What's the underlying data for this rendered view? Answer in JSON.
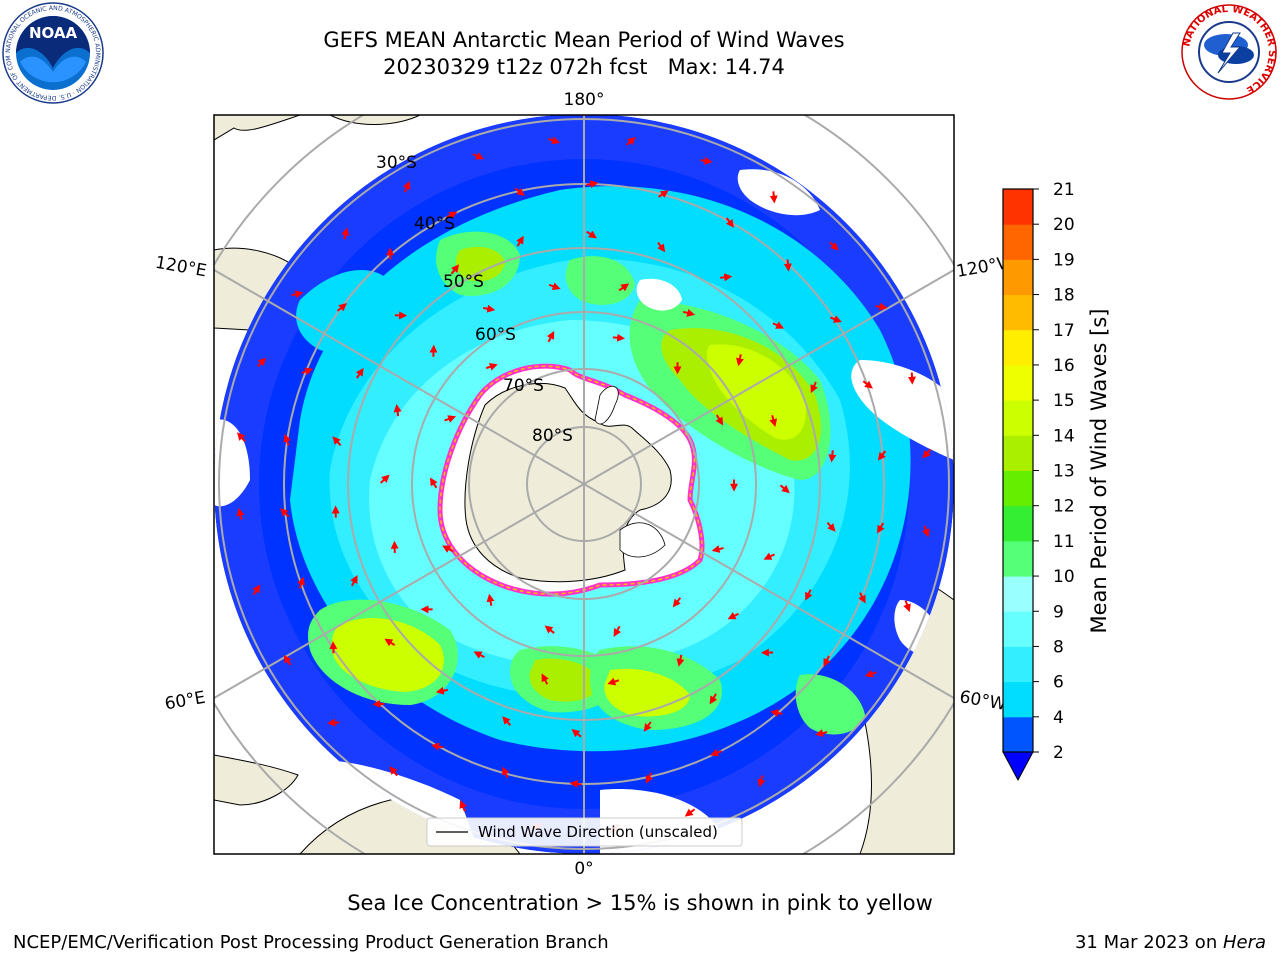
{
  "header": {
    "title_line1": "GEFS MEAN Antarctic Mean Period of Wind Waves",
    "title_line2": "20230329 t12z 072h fcst   Max: 14.74"
  },
  "logos": {
    "noaa_text": "NOAA",
    "noaa_ring_text": "NATIONAL OCEANIC AND ATMOSPHERIC ADMINISTRATION · U.S. DEPARTMENT OF COMMERCE",
    "nws_ring_text": "NATIONAL WEATHER SERVICE"
  },
  "map": {
    "longitude_labels": {
      "top": "180°",
      "bottom": "0°",
      "upper_left": "120°E",
      "lower_left": "60°E",
      "upper_right": "120°W",
      "lower_right": "60°W"
    },
    "latitude_labels": [
      "30°S",
      "40°S",
      "50°S",
      "60°S",
      "70°S",
      "80°S"
    ],
    "legend_label": "Wind Wave Direction (unscaled)",
    "colors": {
      "land": "#efedd9",
      "ocean_missing": "#ffffff",
      "arrow": "#ff0000",
      "ice_edge": "#ff33cc"
    }
  },
  "colorbar": {
    "label": "Mean Period of Wind Waves [s]",
    "ticks": [
      "2",
      "4",
      "6",
      "8",
      "9",
      "10",
      "11",
      "12",
      "13",
      "14",
      "15",
      "16",
      "17",
      "18",
      "19",
      "20",
      "21"
    ],
    "colors": [
      "#0055ff",
      "#00ddff",
      "#33eeff",
      "#66ffff",
      "#99ffff",
      "#55ff77",
      "#33ee33",
      "#66ee00",
      "#aaee00",
      "#ccff00",
      "#eeff00",
      "#ffee00",
      "#ffbb00",
      "#ff9900",
      "#ff6600",
      "#ff3300",
      "#ff0000"
    ],
    "under_color": "#0000ff"
  },
  "notes": {
    "sea_ice": "Sea Ice Concentration > 15% is shown in pink to yellow",
    "footer_left": "NCEP/EMC/Verification Post Processing Product Generation Branch",
    "footer_right_prefix": "31 Mar 2023 on ",
    "footer_right_italic": "Hera"
  }
}
